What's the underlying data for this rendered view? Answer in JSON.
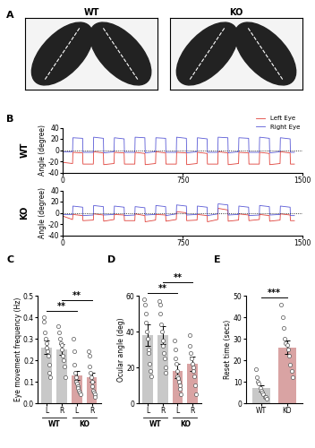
{
  "chart_data": [
    {
      "type": "image",
      "panel_label": "A",
      "titles": [
        "WT",
        "KO"
      ]
    },
    {
      "type": "line",
      "panel_label": "B",
      "side_label": "WT",
      "y_label": "Angle (degree)",
      "x": [
        0,
        60,
        62,
        123,
        125,
        190,
        192,
        253,
        255,
        320,
        322,
        383,
        385,
        450,
        452,
        513,
        515,
        580,
        582,
        643,
        645,
        710,
        712,
        773,
        775,
        840,
        842,
        903,
        905,
        970,
        972,
        1033,
        1035,
        1100,
        1102,
        1163,
        1165,
        1230,
        1232,
        1293,
        1295,
        1360,
        1362,
        1423,
        1425,
        1450
      ],
      "series": [
        {
          "name": "Left Eye",
          "color": "#e0413a",
          "values": [
            -22,
            -24,
            -4,
            -5,
            -25,
            -25,
            -3,
            -5,
            -26,
            -24,
            -4,
            -5,
            -25,
            -25,
            -4,
            -6,
            -26,
            -24,
            -3,
            -5,
            -25,
            -25,
            -4,
            -5,
            -26,
            -24,
            -4,
            -6,
            -25,
            -25,
            -3,
            -5,
            -26,
            -24,
            -4,
            -5,
            -25,
            -25,
            -4,
            -6,
            -26,
            -24,
            -3,
            -5,
            -25,
            -25
          ]
        },
        {
          "name": "Right Eye",
          "color": "#5a5ad6",
          "values": [
            -3,
            -3,
            22,
            21,
            -4,
            -4,
            23,
            21,
            -5,
            -3,
            22,
            20,
            -4,
            -4,
            23,
            22,
            -5,
            -3,
            22,
            21,
            -4,
            -4,
            23,
            21,
            -5,
            -3,
            22,
            20,
            -4,
            -4,
            23,
            22,
            -5,
            -3,
            22,
            21,
            -4,
            -4,
            23,
            21,
            -5,
            -3,
            22,
            20,
            -4,
            -4
          ]
        }
      ],
      "xlim": [
        0,
        1500
      ],
      "xticks": [
        0,
        750,
        1500
      ],
      "ylim": [
        -40,
        40
      ],
      "yticks": [
        -40,
        -20,
        0,
        20,
        40
      ],
      "reference_line": 0,
      "legend": "upper right"
    },
    {
      "type": "line",
      "side_label": "KO",
      "y_label": "Angle (degree)",
      "x": [
        0,
        60,
        62,
        123,
        125,
        190,
        192,
        253,
        255,
        320,
        322,
        383,
        385,
        450,
        452,
        513,
        515,
        580,
        582,
        643,
        645,
        710,
        712,
        773,
        775,
        840,
        842,
        903,
        905,
        970,
        972,
        1033,
        1035,
        1100,
        1102,
        1163,
        1165,
        1230,
        1232,
        1293,
        1295,
        1360,
        1362,
        1423,
        1425,
        1450
      ],
      "series": [
        {
          "name": "Left Eye",
          "color": "#e0413a",
          "values": [
            -6,
            -12,
            -3,
            -5,
            -14,
            -13,
            -2,
            -4,
            -15,
            -12,
            -3,
            -4,
            -14,
            -14,
            -2,
            -5,
            -16,
            -13,
            -3,
            -4,
            -15,
            -12,
            2,
            0,
            -14,
            -13,
            -3,
            -5,
            -16,
            -12,
            8,
            5,
            -15,
            -13,
            -2,
            -4,
            -14,
            -12,
            -3,
            -5,
            -15,
            -13,
            -2,
            -4,
            -14,
            -14
          ]
        },
        {
          "name": "Right Eye",
          "color": "#5a5ad6",
          "values": [
            -3,
            -3,
            12,
            10,
            -5,
            -4,
            13,
            11,
            -4,
            -3,
            12,
            10,
            -5,
            -4,
            11,
            9,
            -4,
            -3,
            13,
            11,
            -5,
            -2,
            14,
            12,
            -4,
            -3,
            12,
            10,
            -5,
            -2,
            16,
            14,
            -4,
            -3,
            12,
            10,
            -5,
            -4,
            13,
            11,
            -4,
            -3,
            12,
            10,
            -5,
            -5
          ]
        }
      ],
      "xlim": [
        0,
        1500
      ],
      "xticks": [
        0,
        750,
        1500
      ],
      "ylim": [
        -40,
        40
      ],
      "yticks": [
        -40,
        -20,
        0,
        20,
        40
      ],
      "reference_line": 0
    },
    {
      "type": "bar",
      "panel_label": "C",
      "y_label": "Eye movement frequency (Hz)",
      "categories": [
        "L",
        "R",
        "L",
        "R"
      ],
      "category_groups": [
        "WT",
        "WT",
        "KO",
        "KO"
      ],
      "values": [
        0.26,
        0.25,
        0.13,
        0.12
      ],
      "errors": [
        0.03,
        0.025,
        0.02,
        0.02
      ],
      "colors": [
        "#c8c8c8",
        "#c8c8c8",
        "#d9a3a3",
        "#d9a3a3"
      ],
      "points": [
        [
          0.4,
          0.38,
          0.33,
          0.3,
          0.28,
          0.26,
          0.24,
          0.22,
          0.18,
          0.14,
          0.12
        ],
        [
          0.36,
          0.33,
          0.3,
          0.28,
          0.27,
          0.25,
          0.22,
          0.2,
          0.17,
          0.12
        ],
        [
          0.3,
          0.24,
          0.18,
          0.14,
          0.12,
          0.1,
          0.09,
          0.08,
          0.07,
          0.06,
          0.05,
          0.04
        ],
        [
          0.24,
          0.22,
          0.17,
          0.14,
          0.12,
          0.1,
          0.08,
          0.06,
          0.05,
          0.04,
          0.03
        ]
      ],
      "ylim": [
        0.0,
        0.5
      ],
      "yticks": [
        0.0,
        0.1,
        0.2,
        0.3,
        0.4,
        0.5
      ],
      "annotations": [
        {
          "text": "**",
          "from": 0,
          "to": 2
        },
        {
          "text": "**",
          "from": 1,
          "to": 3
        }
      ]
    },
    {
      "type": "bar",
      "panel_label": "D",
      "y_label": "Ocular angle (deg)",
      "categories": [
        "L",
        "R",
        "L",
        "R"
      ],
      "category_groups": [
        "WT",
        "WT",
        "KO",
        "KO"
      ],
      "values": [
        38,
        38,
        18,
        22
      ],
      "errors": [
        6,
        5,
        4,
        4
      ],
      "colors": [
        "#c8c8c8",
        "#c8c8c8",
        "#d9a3a3",
        "#d9a3a3"
      ],
      "points": [
        [
          58,
          55,
          50,
          45,
          40,
          36,
          30,
          28,
          22,
          18,
          15
        ],
        [
          57,
          55,
          50,
          44,
          40,
          35,
          32,
          28,
          25,
          20,
          17
        ],
        [
          35,
          30,
          25,
          22,
          18,
          15,
          14,
          12,
          10,
          8,
          5
        ],
        [
          38,
          32,
          28,
          25,
          22,
          20,
          18,
          15,
          10,
          5
        ]
      ],
      "ylim": [
        0,
        60
      ],
      "yticks": [
        0,
        20,
        40,
        60
      ],
      "annotations": [
        {
          "text": "**",
          "from": 0,
          "to": 2
        },
        {
          "text": "**",
          "from": 1,
          "to": 3
        }
      ]
    },
    {
      "type": "bar",
      "panel_label": "E",
      "y_label": "Reset time (secs)",
      "categories": [
        "WT",
        "KO"
      ],
      "values": [
        7,
        26
      ],
      "errors": [
        1.5,
        3
      ],
      "colors": [
        "#c8c8c8",
        "#d9a3a3"
      ],
      "points": [
        [
          16,
          12,
          10,
          9,
          7,
          6,
          5,
          4,
          3,
          3,
          2
        ],
        [
          46,
          40,
          35,
          30,
          28,
          27,
          25,
          22,
          18,
          15,
          12
        ]
      ],
      "ylim": [
        0,
        50
      ],
      "yticks": [
        0,
        10,
        20,
        30,
        40,
        50
      ],
      "annotations": [
        {
          "text": "***",
          "from": 0,
          "to": 1
        }
      ]
    }
  ]
}
